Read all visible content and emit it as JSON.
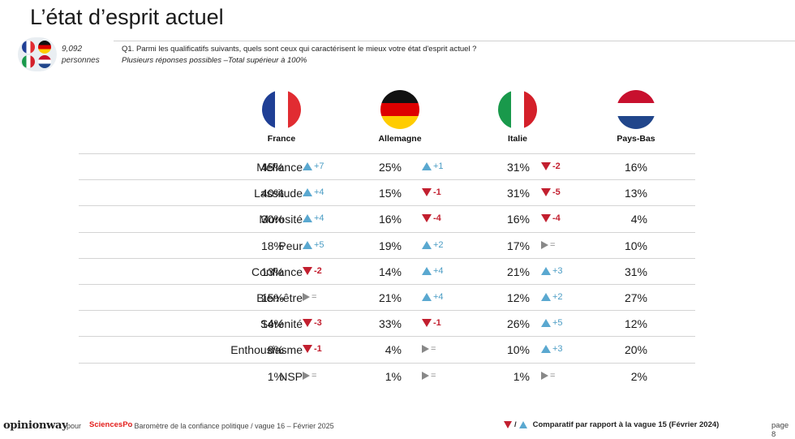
{
  "title": "L’état d’esprit actuel",
  "sample": {
    "count": "9,092",
    "unit": "personnes"
  },
  "question": {
    "text": "Q1. Parmi les qualificatifs suivants, quels sont ceux qui caractérisent le mieux votre état d'esprit actuel ?",
    "note": "Plusieurs réponses possibles –Total supérieur à 100%"
  },
  "countries": [
    {
      "name": "France",
      "flag": "france-flag-icon"
    },
    {
      "name": "Allemagne",
      "flag": "germany-flag-icon"
    },
    {
      "name": "Italie",
      "flag": "italy-flag-icon"
    },
    {
      "name": "Pays-Bas",
      "flag": "netherlands-flag-icon"
    }
  ],
  "rows": [
    {
      "label": "Méfiance",
      "cells": [
        {
          "value": "45%",
          "trend": "up",
          "delta": "+7"
        },
        {
          "value": "25%",
          "trend": "up",
          "delta": "+1"
        },
        {
          "value": "31%",
          "trend": "down",
          "delta": "-2"
        },
        {
          "value": "16%",
          "trend": "",
          "delta": ""
        }
      ]
    },
    {
      "label": "Lassitude",
      "cells": [
        {
          "value": "40%",
          "trend": "up",
          "delta": "+4"
        },
        {
          "value": "15%",
          "trend": "down",
          "delta": "-1"
        },
        {
          "value": "31%",
          "trend": "down",
          "delta": "-5"
        },
        {
          "value": "13%",
          "trend": "",
          "delta": ""
        }
      ]
    },
    {
      "label": "Morosité",
      "cells": [
        {
          "value": "30%",
          "trend": "up",
          "delta": "+4"
        },
        {
          "value": "16%",
          "trend": "down",
          "delta": "-4"
        },
        {
          "value": "16%",
          "trend": "down",
          "delta": "-4"
        },
        {
          "value": "4%",
          "trend": "",
          "delta": ""
        }
      ]
    },
    {
      "label": "Peur",
      "cells": [
        {
          "value": "18%",
          "trend": "up",
          "delta": "+5"
        },
        {
          "value": "19%",
          "trend": "up",
          "delta": "+2"
        },
        {
          "value": "17%",
          "trend": "eq",
          "delta": "="
        },
        {
          "value": "10%",
          "trend": "",
          "delta": ""
        }
      ]
    },
    {
      "label": "Confiance",
      "cells": [
        {
          "value": "13%",
          "trend": "down",
          "delta": "-2"
        },
        {
          "value": "14%",
          "trend": "up",
          "delta": "+4"
        },
        {
          "value": "21%",
          "trend": "up",
          "delta": "+3"
        },
        {
          "value": "31%",
          "trend": "",
          "delta": ""
        }
      ]
    },
    {
      "label": "Bien-être",
      "cells": [
        {
          "value": "15%",
          "trend": "eq",
          "delta": "="
        },
        {
          "value": "21%",
          "trend": "up",
          "delta": "+4"
        },
        {
          "value": "12%",
          "trend": "up",
          "delta": "+2"
        },
        {
          "value": "27%",
          "trend": "",
          "delta": ""
        }
      ]
    },
    {
      "label": "Sérénité",
      "cells": [
        {
          "value": "14%",
          "trend": "down",
          "delta": "-3"
        },
        {
          "value": "33%",
          "trend": "down",
          "delta": "-1"
        },
        {
          "value": "26%",
          "trend": "up",
          "delta": "+5"
        },
        {
          "value": "12%",
          "trend": "",
          "delta": ""
        }
      ]
    },
    {
      "label": "Enthousiasme",
      "cells": [
        {
          "value": "8%",
          "trend": "down",
          "delta": "-1"
        },
        {
          "value": "4%",
          "trend": "eq",
          "delta": "="
        },
        {
          "value": "10%",
          "trend": "up",
          "delta": "+3"
        },
        {
          "value": "20%",
          "trend": "",
          "delta": ""
        }
      ]
    },
    {
      "label": "NSP",
      "cells": [
        {
          "value": "1%",
          "trend": "eq",
          "delta": "="
        },
        {
          "value": "1%",
          "trend": "eq",
          "delta": "="
        },
        {
          "value": "1%",
          "trend": "eq",
          "delta": "="
        },
        {
          "value": "2%",
          "trend": "",
          "delta": ""
        }
      ]
    }
  ],
  "footer": {
    "brand": "opinionway",
    "pour": "pour",
    "partner": "SciencesPo",
    "text": "·  Baromètre de la confiance politique / vague 16 – Février 2025",
    "legend": "Comparatif par rapport à la vague 15 (Février 2024)",
    "legend_sep": "/",
    "page": "page 8"
  },
  "colors": {
    "up": "#5aa8d0",
    "down": "#c21f2f",
    "eq": "#888888",
    "sciencespo": "#e31d1a"
  }
}
